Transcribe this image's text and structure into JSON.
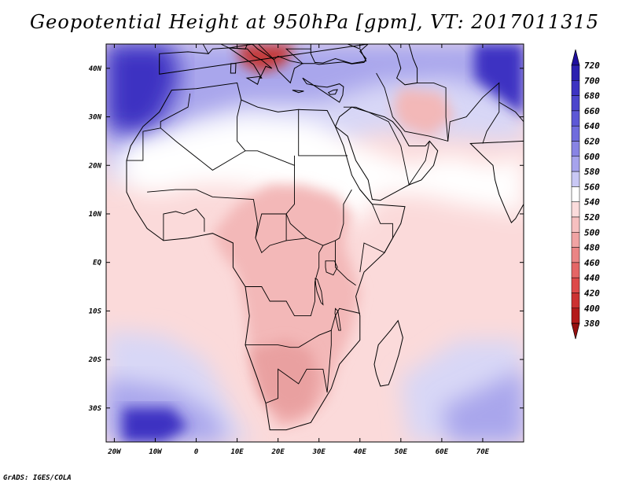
{
  "title": "Geopotential Height at 950hPa [gpm], VT: 2017011315",
  "credit": "GrADS: IGES/COLA",
  "map": {
    "lon_range": [
      -22,
      80
    ],
    "lat_range": [
      -37,
      45
    ],
    "lat_labels": [
      {
        "lat": 40,
        "label": "40N"
      },
      {
        "lat": 30,
        "label": "30N"
      },
      {
        "lat": 20,
        "label": "20N"
      },
      {
        "lat": 10,
        "label": "10N"
      },
      {
        "lat": 0,
        "label": "EQ"
      },
      {
        "lat": -10,
        "label": "10S"
      },
      {
        "lat": -20,
        "label": "20S"
      },
      {
        "lat": -30,
        "label": "30S"
      }
    ],
    "lon_labels": [
      {
        "lon": -20,
        "label": "20W"
      },
      {
        "lon": -10,
        "label": "10W"
      },
      {
        "lon": 0,
        "label": "0"
      },
      {
        "lon": 10,
        "label": "10E"
      },
      {
        "lon": 20,
        "label": "20E"
      },
      {
        "lon": 30,
        "label": "30E"
      },
      {
        "lon": 40,
        "label": "40E"
      },
      {
        "lon": 50,
        "label": "50E"
      },
      {
        "lon": 60,
        "label": "60E"
      },
      {
        "lon": 70,
        "label": "70E"
      }
    ]
  },
  "colorbar": {
    "levels": [
      "720",
      "700",
      "680",
      "660",
      "640",
      "620",
      "600",
      "580",
      "560",
      "540",
      "520",
      "500",
      "480",
      "460",
      "440",
      "420",
      "400",
      "380"
    ],
    "colors": [
      "#1f0f9e",
      "#2c20b0",
      "#3d33c2",
      "#4c45cc",
      "#5d58d6",
      "#706cdd",
      "#8884e4",
      "#a6a3ec",
      "#c9c8f4",
      "#ffffff",
      "#fbdcdc",
      "#f6c0c0",
      "#f0a3a3",
      "#ea8585",
      "#e46666",
      "#dd4a4a",
      "#cc3232",
      "#b31b1b",
      "#961010"
    ]
  },
  "colors": {
    "very_low": "#c43b3b",
    "low": "#f3b8b8",
    "mid_low": "#fbdada",
    "neutral": "#ffffff",
    "mid_high": "#d8d7f6",
    "high": "#a9a6ec",
    "very_high": "#3d33c2"
  }
}
